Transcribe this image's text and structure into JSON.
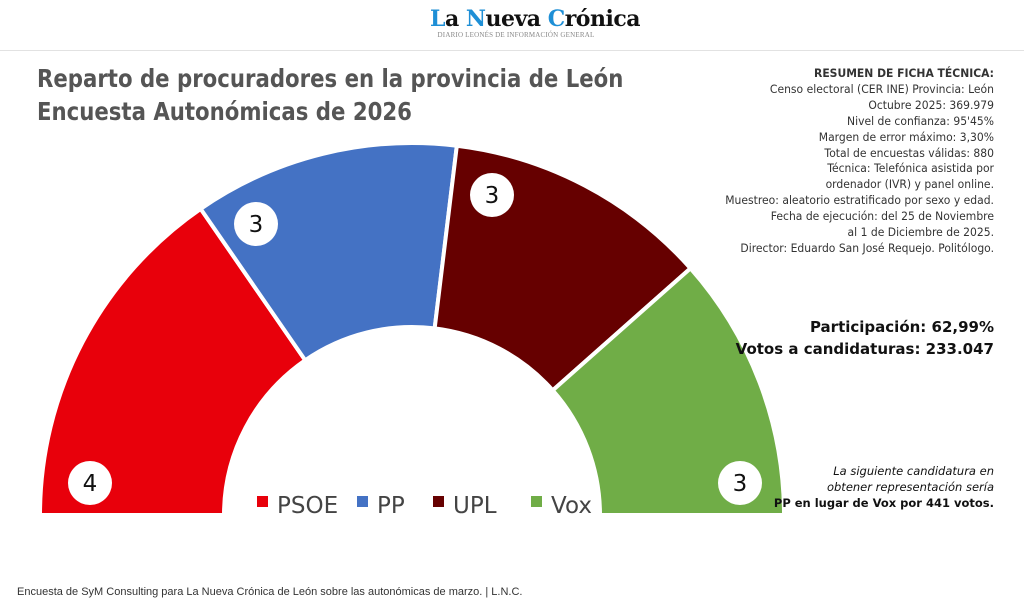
{
  "header": {
    "logo_parts": [
      "L",
      "a ",
      "N",
      "ueva ",
      "C",
      "rónica"
    ],
    "tagline": "DIARIO LEONÉS DE INFORMACIÓN GENERAL"
  },
  "chart_data": {
    "type": "pie",
    "subtype": "parliament-semicircle",
    "title": [
      "Reparto de procuradores en la provincia de León",
      "Encuesta Autonómicas de 2026"
    ],
    "categories": [
      "PSOE",
      "PP",
      "UPL",
      "Vox"
    ],
    "values": [
      4,
      3,
      3,
      3
    ],
    "colors": [
      "#e8000b",
      "#4472c4",
      "#660000",
      "#70ad47"
    ],
    "legend": "inside-center"
  },
  "ficha": {
    "heading": "RESUMEN DE FICHA TÉCNICA:",
    "lines": [
      "Censo electoral (CER INE) Provincia: León",
      "Octubre 2025: 369.979",
      "Nivel de confianza: 95'45%",
      "Margen de error máximo: 3,30%",
      "Total de encuestas válidas: 880",
      "Técnica: Telefónica asistida por",
      "ordenador (IVR) y panel online.",
      "Muestreo: aleatorio estratificado por sexo y edad.",
      "Fecha de ejecución: del 25 de Noviembre",
      "al 1 de Diciembre de 2025.",
      "Director: Eduardo San José Requejo. Politólogo."
    ]
  },
  "participacion": "Participación: 62,99%",
  "votos": "Votos a candidaturas: 233.047",
  "note": {
    "line1": "La siguiente candidatura en",
    "line2": "obtener representación sería",
    "line3": "PP en lugar de Vox por 441 votos."
  },
  "caption": "Encuesta de SyM Consulting para La Nueva Crónica de León sobre las autonómicas de marzo. | L.N.C."
}
